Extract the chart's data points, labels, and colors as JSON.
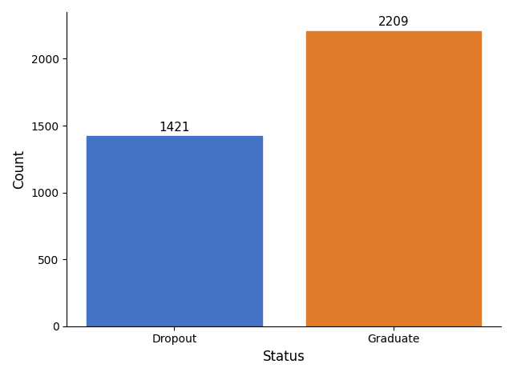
{
  "categories": [
    "Dropout",
    "Graduate"
  ],
  "values": [
    1421,
    2209
  ],
  "bar_colors": [
    "#4472c4",
    "#e07b2a"
  ],
  "xlabel": "Status",
  "ylabel": "Count",
  "ylim": [
    0,
    2350
  ],
  "yticks": [
    0,
    500,
    1000,
    1500,
    2000
  ],
  "annotation_fontsize": 11,
  "label_fontsize": 12,
  "background_color": "#ffffff",
  "bar_width": 0.8
}
